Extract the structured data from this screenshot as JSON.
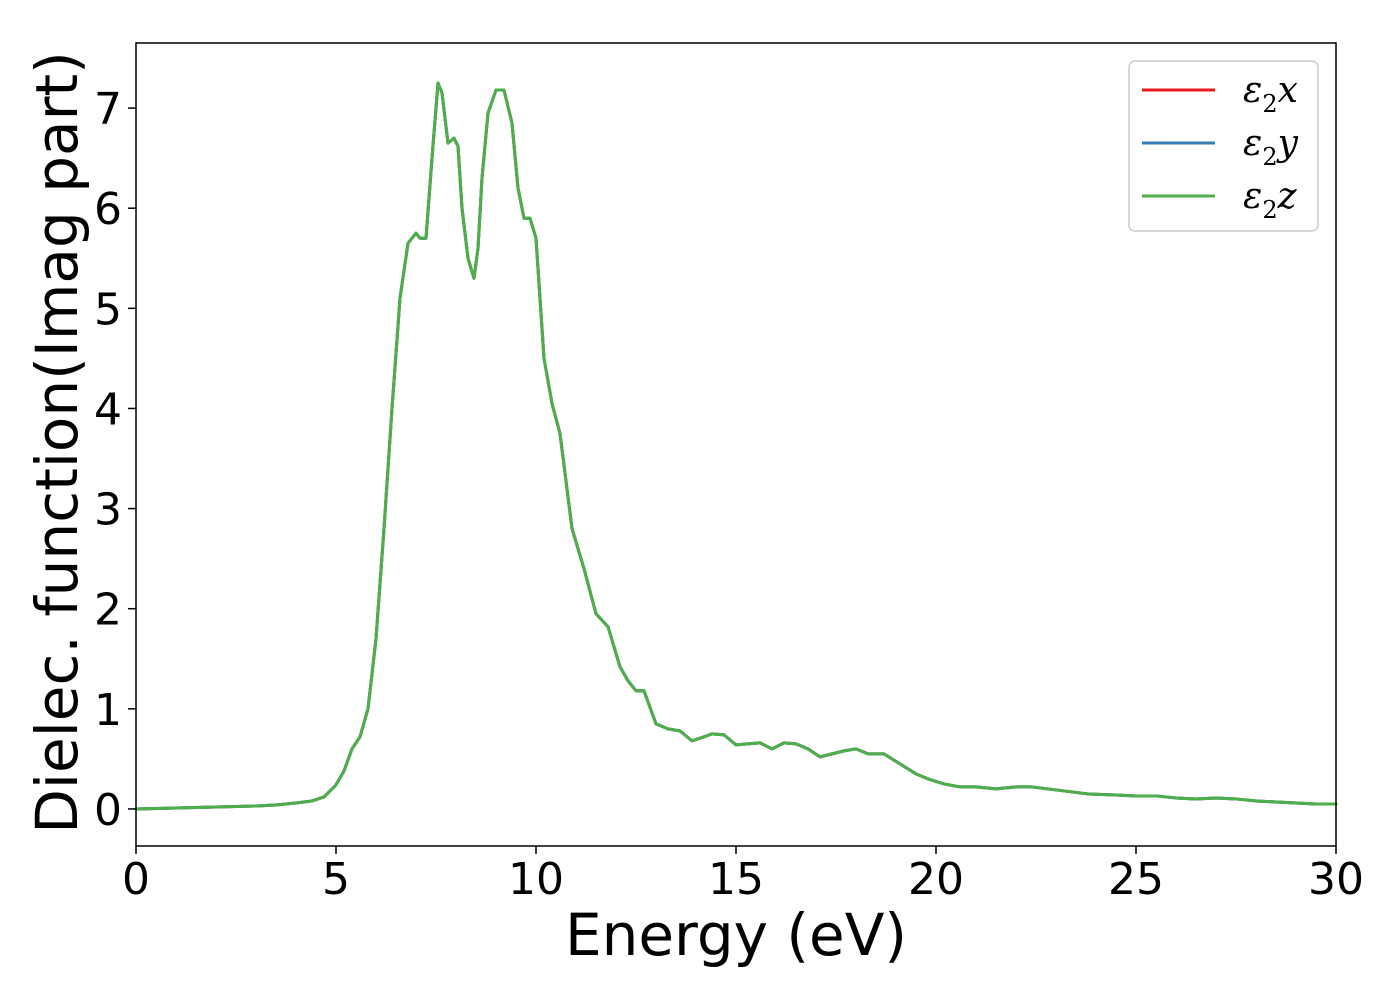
{
  "chart_data": {
    "type": "line",
    "xlabel": "Energy (eV)",
    "ylabel": "Dielec. function(Imag part)",
    "xlim": [
      0,
      30
    ],
    "ylim": [
      -0.37,
      7.65
    ],
    "xticks": [
      0,
      5,
      10,
      15,
      20,
      25,
      30
    ],
    "yticks": [
      0,
      1,
      2,
      3,
      4,
      5,
      6,
      7
    ],
    "grid": false,
    "legend_placement": "top-right",
    "series": [
      {
        "name_base": "ε",
        "name_sub": "2",
        "name_suffix": "x",
        "color": "#e41a1c",
        "x": [
          0,
          1,
          2,
          3,
          3.5,
          4,
          4.4,
          4.7,
          5.0,
          5.2,
          5.4,
          5.6,
          5.8,
          6.0,
          6.2,
          6.4,
          6.6,
          6.8,
          7.0,
          7.1,
          7.25,
          7.4,
          7.55,
          7.65,
          7.8,
          7.95,
          8.05,
          8.15,
          8.3,
          8.45,
          8.55,
          8.65,
          8.8,
          9.0,
          9.2,
          9.4,
          9.55,
          9.7,
          9.85,
          10.0,
          10.2,
          10.4,
          10.6,
          10.9,
          11.2,
          11.5,
          11.8,
          12.1,
          12.3,
          12.5,
          12.7,
          13.0,
          13.3,
          13.6,
          13.9,
          14.2,
          14.4,
          14.7,
          15.0,
          15.3,
          15.6,
          15.9,
          16.2,
          16.5,
          16.8,
          17.1,
          17.4,
          17.7,
          18.0,
          18.3,
          18.7,
          19.1,
          19.5,
          19.8,
          20.2,
          20.6,
          21.0,
          21.5,
          22.0,
          22.4,
          22.8,
          23.2,
          23.8,
          24.5,
          25.0,
          25.5,
          26.0,
          26.5,
          27.0,
          27.5,
          28.0,
          28.5,
          29.0,
          29.5,
          30.0
        ],
        "y": [
          0.0,
          0.01,
          0.02,
          0.03,
          0.04,
          0.06,
          0.08,
          0.12,
          0.24,
          0.38,
          0.6,
          0.72,
          1.0,
          1.7,
          2.8,
          4.0,
          5.1,
          5.65,
          5.75,
          5.7,
          5.7,
          6.5,
          7.25,
          7.15,
          6.65,
          6.7,
          6.62,
          6.0,
          5.5,
          5.3,
          5.6,
          6.3,
          6.95,
          7.18,
          7.18,
          6.85,
          6.2,
          5.9,
          5.9,
          5.7,
          4.5,
          4.05,
          3.75,
          2.8,
          2.4,
          1.95,
          1.82,
          1.42,
          1.28,
          1.18,
          1.18,
          0.85,
          0.8,
          0.78,
          0.68,
          0.72,
          0.75,
          0.74,
          0.64,
          0.65,
          0.66,
          0.6,
          0.66,
          0.65,
          0.6,
          0.52,
          0.55,
          0.58,
          0.6,
          0.55,
          0.55,
          0.45,
          0.35,
          0.3,
          0.25,
          0.22,
          0.22,
          0.2,
          0.22,
          0.22,
          0.2,
          0.18,
          0.15,
          0.14,
          0.13,
          0.13,
          0.11,
          0.1,
          0.11,
          0.1,
          0.08,
          0.07,
          0.06,
          0.05,
          0.05
        ]
      },
      {
        "name_base": "ε",
        "name_sub": "2",
        "name_suffix": "y",
        "color": "#377eb8",
        "x": [
          0,
          1,
          2,
          3,
          3.5,
          4,
          4.4,
          4.7,
          5.0,
          5.2,
          5.4,
          5.6,
          5.8,
          6.0,
          6.2,
          6.4,
          6.6,
          6.8,
          7.0,
          7.1,
          7.25,
          7.4,
          7.55,
          7.65,
          7.8,
          7.95,
          8.05,
          8.15,
          8.3,
          8.45,
          8.55,
          8.65,
          8.8,
          9.0,
          9.2,
          9.4,
          9.55,
          9.7,
          9.85,
          10.0,
          10.2,
          10.4,
          10.6,
          10.9,
          11.2,
          11.5,
          11.8,
          12.1,
          12.3,
          12.5,
          12.7,
          13.0,
          13.3,
          13.6,
          13.9,
          14.2,
          14.4,
          14.7,
          15.0,
          15.3,
          15.6,
          15.9,
          16.2,
          16.5,
          16.8,
          17.1,
          17.4,
          17.7,
          18.0,
          18.3,
          18.7,
          19.1,
          19.5,
          19.8,
          20.2,
          20.6,
          21.0,
          21.5,
          22.0,
          22.4,
          22.8,
          23.2,
          23.8,
          24.5,
          25.0,
          25.5,
          26.0,
          26.5,
          27.0,
          27.5,
          28.0,
          28.5,
          29.0,
          29.5,
          30.0
        ],
        "y": [
          0.0,
          0.01,
          0.02,
          0.03,
          0.04,
          0.06,
          0.08,
          0.12,
          0.24,
          0.38,
          0.6,
          0.72,
          1.0,
          1.7,
          2.8,
          4.0,
          5.1,
          5.65,
          5.75,
          5.7,
          5.7,
          6.5,
          7.25,
          7.15,
          6.65,
          6.7,
          6.62,
          6.0,
          5.5,
          5.3,
          5.6,
          6.3,
          6.95,
          7.18,
          7.18,
          6.85,
          6.2,
          5.9,
          5.9,
          5.7,
          4.5,
          4.05,
          3.75,
          2.8,
          2.4,
          1.95,
          1.82,
          1.42,
          1.28,
          1.18,
          1.18,
          0.85,
          0.8,
          0.78,
          0.68,
          0.72,
          0.75,
          0.74,
          0.64,
          0.65,
          0.66,
          0.6,
          0.66,
          0.65,
          0.6,
          0.52,
          0.55,
          0.58,
          0.6,
          0.55,
          0.55,
          0.45,
          0.35,
          0.3,
          0.25,
          0.22,
          0.22,
          0.2,
          0.22,
          0.22,
          0.2,
          0.18,
          0.15,
          0.14,
          0.13,
          0.13,
          0.11,
          0.1,
          0.11,
          0.1,
          0.08,
          0.07,
          0.06,
          0.05,
          0.05
        ]
      },
      {
        "name_base": "ε",
        "name_sub": "2",
        "name_suffix": "z",
        "color": "#4daf4a",
        "x": [
          0,
          1,
          2,
          3,
          3.5,
          4,
          4.4,
          4.7,
          5.0,
          5.2,
          5.4,
          5.6,
          5.8,
          6.0,
          6.2,
          6.4,
          6.6,
          6.8,
          7.0,
          7.1,
          7.25,
          7.4,
          7.55,
          7.65,
          7.8,
          7.95,
          8.05,
          8.15,
          8.3,
          8.45,
          8.55,
          8.65,
          8.8,
          9.0,
          9.2,
          9.4,
          9.55,
          9.7,
          9.85,
          10.0,
          10.2,
          10.4,
          10.6,
          10.9,
          11.2,
          11.5,
          11.8,
          12.1,
          12.3,
          12.5,
          12.7,
          13.0,
          13.3,
          13.6,
          13.9,
          14.2,
          14.4,
          14.7,
          15.0,
          15.3,
          15.6,
          15.9,
          16.2,
          16.5,
          16.8,
          17.1,
          17.4,
          17.7,
          18.0,
          18.3,
          18.7,
          19.1,
          19.5,
          19.8,
          20.2,
          20.6,
          21.0,
          21.5,
          22.0,
          22.4,
          22.8,
          23.2,
          23.8,
          24.5,
          25.0,
          25.5,
          26.0,
          26.5,
          27.0,
          27.5,
          28.0,
          28.5,
          29.0,
          29.5,
          30.0
        ],
        "y": [
          0.0,
          0.01,
          0.02,
          0.03,
          0.04,
          0.06,
          0.08,
          0.12,
          0.24,
          0.38,
          0.6,
          0.72,
          1.0,
          1.7,
          2.8,
          4.0,
          5.1,
          5.65,
          5.75,
          5.7,
          5.7,
          6.5,
          7.25,
          7.15,
          6.65,
          6.7,
          6.62,
          6.0,
          5.5,
          5.3,
          5.6,
          6.3,
          6.95,
          7.18,
          7.18,
          6.85,
          6.2,
          5.9,
          5.9,
          5.7,
          4.5,
          4.05,
          3.75,
          2.8,
          2.4,
          1.95,
          1.82,
          1.42,
          1.28,
          1.18,
          1.18,
          0.85,
          0.8,
          0.78,
          0.68,
          0.72,
          0.75,
          0.74,
          0.64,
          0.65,
          0.66,
          0.6,
          0.66,
          0.65,
          0.6,
          0.52,
          0.55,
          0.58,
          0.6,
          0.55,
          0.55,
          0.45,
          0.35,
          0.3,
          0.25,
          0.22,
          0.22,
          0.2,
          0.22,
          0.22,
          0.2,
          0.18,
          0.15,
          0.14,
          0.13,
          0.13,
          0.11,
          0.1,
          0.11,
          0.1,
          0.08,
          0.07,
          0.06,
          0.05,
          0.05
        ]
      }
    ]
  }
}
